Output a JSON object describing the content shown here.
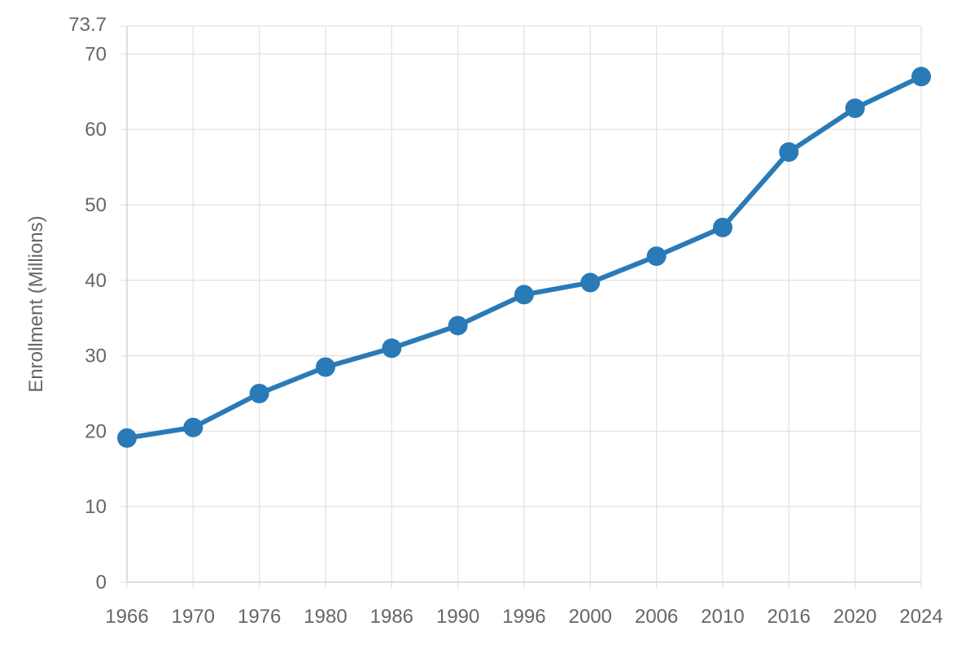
{
  "chart_data": {
    "type": "line",
    "title": "",
    "xlabel": "",
    "ylabel": "Enrollment (Millions)",
    "x": [
      "1966",
      "1970",
      "1976",
      "1980",
      "1986",
      "1990",
      "1996",
      "2000",
      "2006",
      "2010",
      "2016",
      "2020",
      "2024"
    ],
    "series": [
      {
        "values": [
          19.1,
          20.5,
          25.0,
          28.5,
          31.0,
          34.0,
          38.1,
          39.7,
          43.2,
          47.0,
          57.0,
          62.8,
          67.0
        ],
        "color": "#2a7ab8"
      }
    ],
    "ylim": [
      0,
      73.7
    ],
    "yticks": [
      0,
      10,
      20,
      30,
      40,
      50,
      60,
      70
    ],
    "y_top_label": "73.7",
    "grid": true,
    "legend": "none"
  }
}
